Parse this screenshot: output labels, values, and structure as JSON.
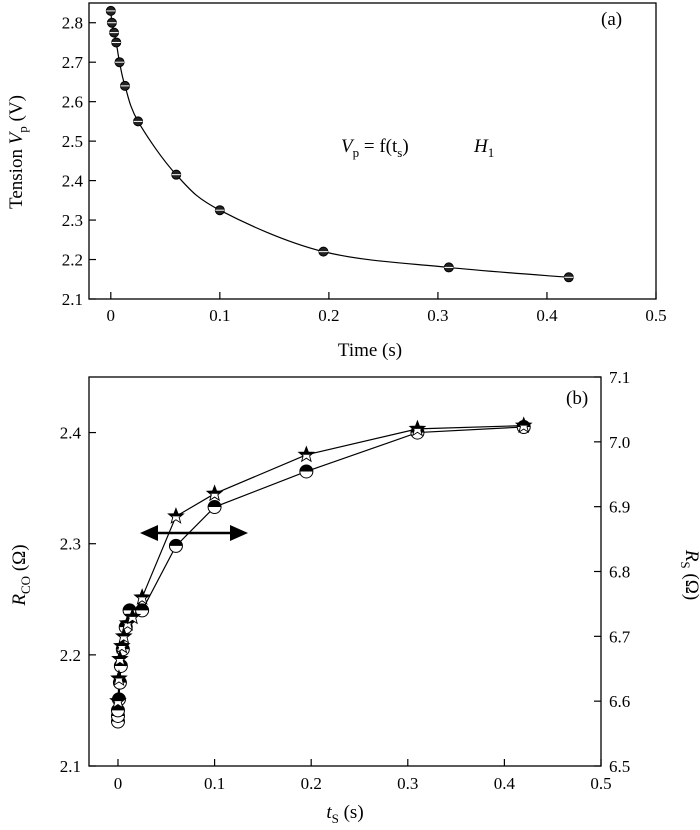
{
  "chart_data": [
    {
      "type": "scatter",
      "panel_label": "(a)",
      "xlabel": "Time (s)",
      "ylabel": {
        "main": "Tension ",
        "symbol": "V",
        "sub": "p",
        "unit": " (V)"
      },
      "annotation": {
        "lhs": "V",
        "lhs_sub": "p",
        "eq": " = f(t",
        "eq_sub": "s",
        "close": ")",
        "h": "H",
        "h_sub": "1"
      },
      "xlim": [
        -0.02,
        0.5
      ],
      "ylim": [
        2.1,
        2.85
      ],
      "xticks": [
        "0",
        "0.1",
        "0.2",
        "0.3",
        "0.4",
        "0.5"
      ],
      "yticks": [
        "2.1",
        "2.2",
        "2.3",
        "2.4",
        "2.5",
        "2.6",
        "2.7",
        "2.8"
      ],
      "series": [
        {
          "x": [
            0.0,
            0.001,
            0.003,
            0.005,
            0.008,
            0.013,
            0.025,
            0.06,
            0.1,
            0.195,
            0.31,
            0.42
          ],
          "y": [
            2.83,
            2.8,
            2.775,
            2.75,
            2.7,
            2.64,
            2.55,
            2.415,
            2.325,
            2.22,
            2.18,
            2.155
          ]
        }
      ]
    },
    {
      "type": "line",
      "panel_label": "(b)",
      "xlabel": {
        "symbol": "t",
        "sub": "S",
        "unit": " (s)"
      },
      "ylabel_left": {
        "symbol": "R",
        "sub": "CO",
        "unit": " (Ω)"
      },
      "ylabel_right": {
        "symbol": "R",
        "sub": "S",
        "unit": " (Ω)"
      },
      "xlim": [
        -0.03,
        0.5
      ],
      "ylim_left": [
        2.1,
        2.45
      ],
      "ylim_right": [
        6.5,
        7.1
      ],
      "xticks": [
        "0",
        "0.1",
        "0.2",
        "0.3",
        "0.4",
        "0.5"
      ],
      "yticks_left": [
        "2.1",
        "2.2",
        "2.3",
        "2.4"
      ],
      "yticks_right": [
        "6.5",
        "6.6",
        "6.7",
        "6.8",
        "6.9",
        "7.0",
        "7.1"
      ],
      "series": [
        {
          "axis": "left",
          "marker": "half-filled-circle",
          "x": [
            0.0,
            0.0,
            0.0,
            0.001,
            0.002,
            0.003,
            0.005,
            0.008,
            0.012,
            0.025,
            0.06,
            0.1,
            0.195,
            0.31,
            0.42
          ],
          "y": [
            2.14,
            2.145,
            2.15,
            2.16,
            2.175,
            2.19,
            2.205,
            2.225,
            2.24,
            2.24,
            2.298,
            2.333,
            2.365,
            2.4,
            2.405
          ]
        },
        {
          "axis": "right",
          "marker": "half-filled-star",
          "x": [
            0.0,
            0.001,
            0.002,
            0.004,
            0.006,
            0.01,
            0.015,
            0.025,
            0.06,
            0.1,
            0.195,
            0.31,
            0.42
          ],
          "y": [
            6.6,
            6.635,
            6.665,
            6.685,
            6.7,
            6.72,
            6.73,
            6.76,
            6.885,
            6.92,
            6.98,
            7.02,
            7.025
          ]
        }
      ]
    }
  ]
}
